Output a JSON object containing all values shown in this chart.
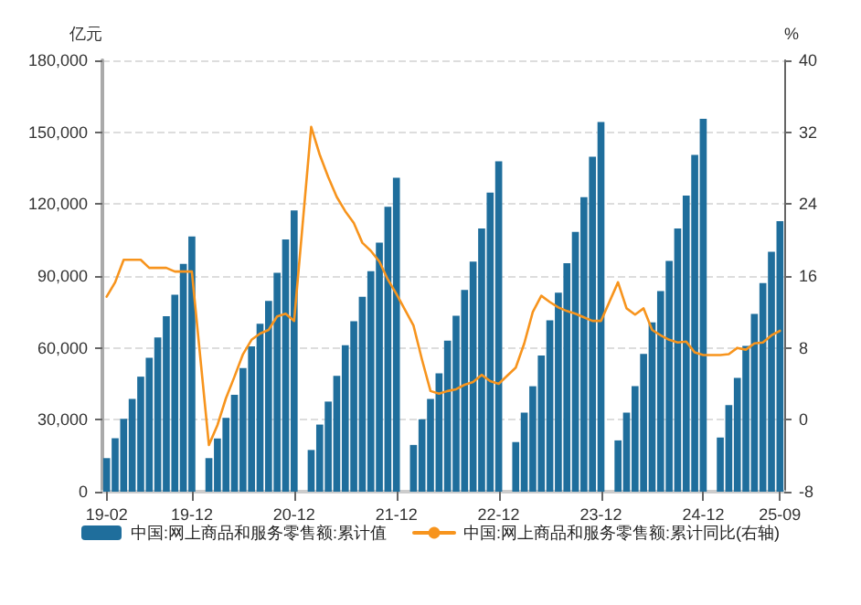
{
  "chart_data": {
    "type": "bar",
    "ylabel": "亿元",
    "y2label": "%",
    "categories": [
      "19-02",
      null,
      null,
      null,
      null,
      null,
      null,
      null,
      null,
      null,
      "19-12",
      null,
      null,
      null,
      null,
      null,
      null,
      null,
      null,
      null,
      null,
      null,
      "20-12",
      null,
      null,
      null,
      null,
      null,
      null,
      null,
      null,
      null,
      null,
      null,
      "21-12",
      null,
      null,
      null,
      null,
      null,
      null,
      null,
      null,
      null,
      null,
      null,
      "22-12",
      null,
      null,
      null,
      null,
      null,
      null,
      null,
      null,
      null,
      null,
      null,
      "23-12",
      null,
      null,
      null,
      null,
      null,
      null,
      null,
      null,
      null,
      null,
      null,
      "24-12",
      null,
      null,
      null,
      null,
      null,
      null,
      null,
      null,
      "25-09"
    ],
    "series": [
      {
        "name": "中国:网上商品和服务零售额:累计值",
        "color": "#1f6e9c",
        "values": [
          14000,
          22300,
          30400,
          38700,
          48000,
          55900,
          64400,
          73200,
          82200,
          95100,
          106500,
          null,
          14000,
          22200,
          30800,
          40400,
          51600,
          60600,
          70100,
          79600,
          91300,
          105300,
          117400,
          null,
          17400,
          28000,
          37600,
          48300,
          61100,
          71100,
          81300,
          92000,
          103900,
          118900,
          131000,
          null,
          19500,
          30200,
          38700,
          49400,
          63000,
          73400,
          84200,
          96000,
          109800,
          124800,
          137900,
          null,
          20700,
          33000,
          44000,
          56800,
          71500,
          83000,
          95300,
          108400,
          122900,
          139800,
          154300,
          null,
          21400,
          33000,
          44000,
          57500,
          70600,
          83700,
          96300,
          109800,
          123600,
          140500,
          155600,
          null,
          22600,
          36100,
          47500,
          60800,
          74200,
          87000,
          100100,
          112900
        ]
      },
      {
        "name": "中国:网上商品和服务零售额:累计同比(右轴)",
        "type": "line",
        "axis": "y2",
        "color": "#f7941d",
        "values": [
          13.7,
          15.3,
          17.8,
          17.8,
          17.8,
          16.9,
          16.9,
          16.9,
          16.5,
          16.5,
          16.5,
          null,
          -2.8,
          -0.6,
          2.4,
          4.8,
          7.3,
          8.9,
          9.6,
          10.0,
          11.5,
          11.8,
          11.0,
          null,
          32.6,
          29.5,
          27.0,
          24.8,
          23.2,
          21.9,
          19.7,
          18.8,
          17.6,
          15.6,
          14.0,
          null,
          10.5,
          6.7,
          3.2,
          2.9,
          3.2,
          3.4,
          3.9,
          4.2,
          5.0,
          4.3,
          4.0,
          null,
          5.8,
          8.5,
          12.0,
          13.8,
          13.1,
          12.5,
          12.1,
          11.8,
          11.4,
          11.0,
          11.0,
          null,
          15.3,
          12.4,
          11.7,
          12.4,
          10.0,
          9.4,
          8.9,
          8.6,
          8.7,
          7.5,
          7.2,
          null,
          7.2,
          7.3,
          8.0,
          7.8,
          8.5,
          8.6,
          9.4,
          9.9
        ]
      }
    ],
    "ylim": [
      0,
      180000
    ],
    "yticks": [
      0,
      {
        "value": 30000,
        "label": "30,000"
      },
      {
        "value": 60000,
        "label": "60,000"
      },
      {
        "value": 90000,
        "label": "90,000"
      },
      {
        "value": 120000,
        "label": "120,000"
      },
      {
        "value": 150000,
        "label": "150,000"
      },
      {
        "value": 180000,
        "label": "180,000"
      }
    ],
    "y2lim": [
      -8,
      40
    ],
    "y2ticks": [
      -8,
      0,
      8,
      16,
      24,
      32,
      40
    ],
    "grid": "y",
    "legend": "bottom",
    "marker": "none",
    "line_style": "solid"
  }
}
